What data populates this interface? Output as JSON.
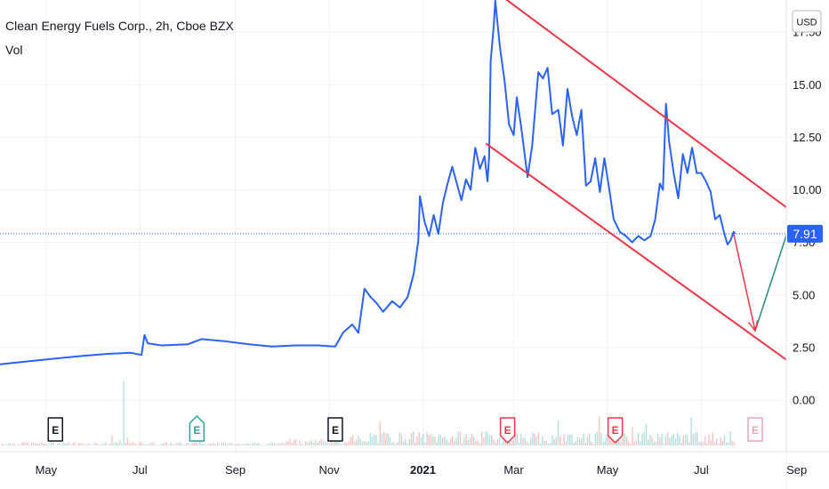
{
  "header": {
    "title": "Clean Energy Fuels Corp., 2h, Cboe BZX",
    "indicator": "Vol"
  },
  "colors": {
    "price_line": "#2962ff",
    "channel": "#f23645",
    "projection_down": "#f23645",
    "projection_up": "#26897a",
    "vol_up": "#26a69a",
    "vol_down": "#ef5350",
    "grid": "#f0f3fa"
  },
  "chart_data": {
    "type": "line",
    "currency": "USD",
    "last_price": "7.91",
    "ylim": [
      -0.9,
      19.0
    ],
    "y_ticks": [
      {
        "value": 0,
        "label": "0.00"
      },
      {
        "value": 2.5,
        "label": "2.50"
      },
      {
        "value": 5,
        "label": "5.00"
      },
      {
        "value": 7.5,
        "label": "7.50"
      },
      {
        "value": 10,
        "label": "10.00"
      },
      {
        "value": 12.5,
        "label": "12.50"
      },
      {
        "value": 15,
        "label": "15.00"
      },
      {
        "value": 17.5,
        "label": "17.50"
      }
    ],
    "x_range": [
      "2020-04-01",
      "2021-09-22"
    ],
    "x_ticks": [
      {
        "date": "2020-05-01",
        "label": "May",
        "bold": false
      },
      {
        "date": "2020-07-01",
        "label": "Jul",
        "bold": false
      },
      {
        "date": "2020-09-01",
        "label": "Sep",
        "bold": false
      },
      {
        "date": "2020-11-01",
        "label": "Nov",
        "bold": false
      },
      {
        "date": "2021-01-01",
        "label": "2021",
        "bold": true
      },
      {
        "date": "2021-03-01",
        "label": "Mar",
        "bold": false
      },
      {
        "date": "2021-05-01",
        "label": "May",
        "bold": false
      },
      {
        "date": "2021-07-01",
        "label": "Jul",
        "bold": false
      },
      {
        "date": "2021-09-01",
        "label": "Sep",
        "bold": false
      }
    ],
    "series": [
      {
        "points": [
          [
            "2020-04-01",
            1.7
          ],
          [
            "2020-04-20",
            1.85
          ],
          [
            "2020-05-10",
            2.0
          ],
          [
            "2020-05-25",
            2.1
          ],
          [
            "2020-06-10",
            2.2
          ],
          [
            "2020-06-25",
            2.25
          ],
          [
            "2020-07-02",
            2.15
          ],
          [
            "2020-07-04",
            3.1
          ],
          [
            "2020-07-06",
            2.7
          ],
          [
            "2020-07-15",
            2.6
          ],
          [
            "2020-08-01",
            2.65
          ],
          [
            "2020-08-10",
            2.9
          ],
          [
            "2020-08-25",
            2.8
          ],
          [
            "2020-09-10",
            2.65
          ],
          [
            "2020-09-25",
            2.55
          ],
          [
            "2020-10-10",
            2.6
          ],
          [
            "2020-10-25",
            2.6
          ],
          [
            "2020-11-05",
            2.55
          ],
          [
            "2020-11-10",
            3.2
          ],
          [
            "2020-11-16",
            3.6
          ],
          [
            "2020-11-20",
            3.2
          ],
          [
            "2020-11-24",
            5.3
          ],
          [
            "2020-11-28",
            4.9
          ],
          [
            "2020-12-02",
            4.6
          ],
          [
            "2020-12-06",
            4.2
          ],
          [
            "2020-12-12",
            4.7
          ],
          [
            "2020-12-17",
            4.4
          ],
          [
            "2020-12-22",
            4.9
          ],
          [
            "2020-12-26",
            6.0
          ],
          [
            "2020-12-29",
            7.6
          ],
          [
            "2020-12-30",
            9.7
          ],
          [
            "2021-01-02",
            8.5
          ],
          [
            "2021-01-05",
            7.8
          ],
          [
            "2021-01-08",
            8.8
          ],
          [
            "2021-01-11",
            7.9
          ],
          [
            "2021-01-14",
            9.4
          ],
          [
            "2021-01-17",
            10.3
          ],
          [
            "2021-01-20",
            11.1
          ],
          [
            "2021-01-23",
            10.3
          ],
          [
            "2021-01-26",
            9.5
          ],
          [
            "2021-01-29",
            10.5
          ],
          [
            "2021-02-01",
            10.0
          ],
          [
            "2021-02-04",
            12.0
          ],
          [
            "2021-02-07",
            11.0
          ],
          [
            "2021-02-10",
            11.6
          ],
          [
            "2021-02-12",
            10.4
          ],
          [
            "2021-02-13",
            11.6
          ],
          [
            "2021-02-14",
            16.1
          ],
          [
            "2021-02-16",
            17.8
          ],
          [
            "2021-02-17",
            19.0
          ],
          [
            "2021-02-20",
            16.8
          ],
          [
            "2021-02-23",
            15.2
          ],
          [
            "2021-02-26",
            13.1
          ],
          [
            "2021-03-01",
            12.6
          ],
          [
            "2021-03-03",
            14.4
          ],
          [
            "2021-03-06",
            12.9
          ],
          [
            "2021-03-10",
            10.6
          ],
          [
            "2021-03-13",
            12.1
          ],
          [
            "2021-03-17",
            15.6
          ],
          [
            "2021-03-20",
            15.3
          ],
          [
            "2021-03-23",
            15.8
          ],
          [
            "2021-03-26",
            13.6
          ],
          [
            "2021-03-30",
            13.8
          ],
          [
            "2021-04-02",
            12.1
          ],
          [
            "2021-04-05",
            14.8
          ],
          [
            "2021-04-08",
            13.5
          ],
          [
            "2021-04-11",
            12.6
          ],
          [
            "2021-04-14",
            13.8
          ],
          [
            "2021-04-17",
            10.2
          ],
          [
            "2021-04-20",
            10.4
          ],
          [
            "2021-04-23",
            11.5
          ],
          [
            "2021-04-26",
            9.9
          ],
          [
            "2021-04-29",
            11.5
          ],
          [
            "2021-05-02",
            10.1
          ],
          [
            "2021-05-05",
            8.6
          ],
          [
            "2021-05-09",
            8.0
          ],
          [
            "2021-05-13",
            7.8
          ],
          [
            "2021-05-17",
            7.5
          ],
          [
            "2021-05-21",
            7.8
          ],
          [
            "2021-05-25",
            7.6
          ],
          [
            "2021-05-29",
            7.8
          ],
          [
            "2021-06-01",
            8.6
          ],
          [
            "2021-06-04",
            10.3
          ],
          [
            "2021-06-06",
            10.0
          ],
          [
            "2021-06-08",
            14.1
          ],
          [
            "2021-06-10",
            12.3
          ],
          [
            "2021-06-13",
            10.8
          ],
          [
            "2021-06-16",
            9.6
          ],
          [
            "2021-06-19",
            11.7
          ],
          [
            "2021-06-22",
            10.8
          ],
          [
            "2021-06-25",
            12.0
          ],
          [
            "2021-06-28",
            10.8
          ],
          [
            "2021-07-01",
            10.8
          ],
          [
            "2021-07-04",
            10.4
          ],
          [
            "2021-07-07",
            9.9
          ],
          [
            "2021-07-10",
            8.6
          ],
          [
            "2021-07-13",
            8.8
          ],
          [
            "2021-07-16",
            7.9
          ],
          [
            "2021-07-18",
            7.4
          ],
          [
            "2021-07-20",
            7.6
          ],
          [
            "2021-07-22",
            8.0
          ],
          [
            "2021-07-23",
            7.91
          ]
        ]
      }
    ],
    "drawings": {
      "channel_upper": [
        [
          "2021-02-14",
          19.6
        ],
        [
          "2021-09-25",
          7.5
        ]
      ],
      "channel_lower": [
        [
          "2021-02-11",
          12.2
        ],
        [
          "2021-09-25",
          0.3
        ]
      ],
      "projection_down": [
        [
          "2021-07-22",
          7.91
        ],
        [
          "2021-08-05",
          3.3
        ]
      ],
      "projection_up": [
        [
          "2021-08-05",
          3.3
        ],
        [
          "2021-09-20",
          13.6
        ]
      ]
    },
    "earnings_markers": [
      {
        "date": "2020-05-07",
        "label": "E",
        "status": "past"
      },
      {
        "date": "2020-08-07",
        "label": "E",
        "status": "beat"
      },
      {
        "date": "2020-11-05",
        "label": "E",
        "status": "past"
      },
      {
        "date": "2021-02-25",
        "label": "E",
        "status": "miss"
      },
      {
        "date": "2021-05-06",
        "label": "E",
        "status": "miss"
      },
      {
        "date": "2021-08-05",
        "label": "E",
        "status": "upcoming"
      }
    ]
  }
}
